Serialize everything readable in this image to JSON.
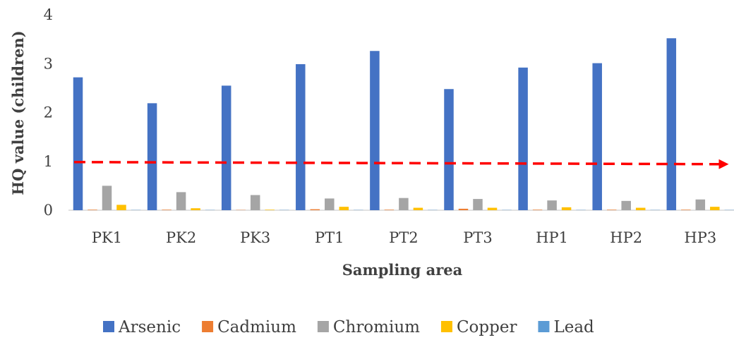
{
  "chart_data": {
    "type": "bar",
    "xlabel": "Sampling area",
    "ylabel": "HQ value (children)",
    "ylim": [
      0,
      4
    ],
    "yticks": [
      "0",
      "1",
      "2",
      "3",
      "4"
    ],
    "grid": false,
    "legend_position": "bottom",
    "categories": [
      "PK1",
      "PK2",
      "PK3",
      "PT1",
      "PT2",
      "PT3",
      "HP1",
      "HP2",
      "HP3"
    ],
    "series": [
      {
        "name": "Arsenic",
        "color": "#4472C4",
        "values": [
          2.72,
          2.19,
          2.55,
          2.99,
          3.26,
          2.48,
          2.92,
          3.01,
          3.52
        ]
      },
      {
        "name": "Cadmium",
        "color": "#ED7D31",
        "values": [
          0.01,
          0.01,
          0.005,
          0.02,
          0.01,
          0.03,
          0.01,
          0.01,
          0.01
        ]
      },
      {
        "name": "Chromium",
        "color": "#A5A5A5",
        "values": [
          0.5,
          0.37,
          0.31,
          0.24,
          0.25,
          0.23,
          0.2,
          0.19,
          0.22
        ]
      },
      {
        "name": "Copper",
        "color": "#FFC000",
        "values": [
          0.11,
          0.04,
          0.01,
          0.07,
          0.05,
          0.05,
          0.06,
          0.05,
          0.07
        ]
      },
      {
        "name": "Lead",
        "color": "#5B9BD5",
        "values": [
          0.005,
          0.005,
          0.005,
          0.005,
          0.005,
          0.005,
          0.005,
          0.005,
          0.005
        ]
      }
    ],
    "reference_line": {
      "value": 1,
      "color": "#FF0000",
      "style": "dashed-arrow"
    }
  }
}
